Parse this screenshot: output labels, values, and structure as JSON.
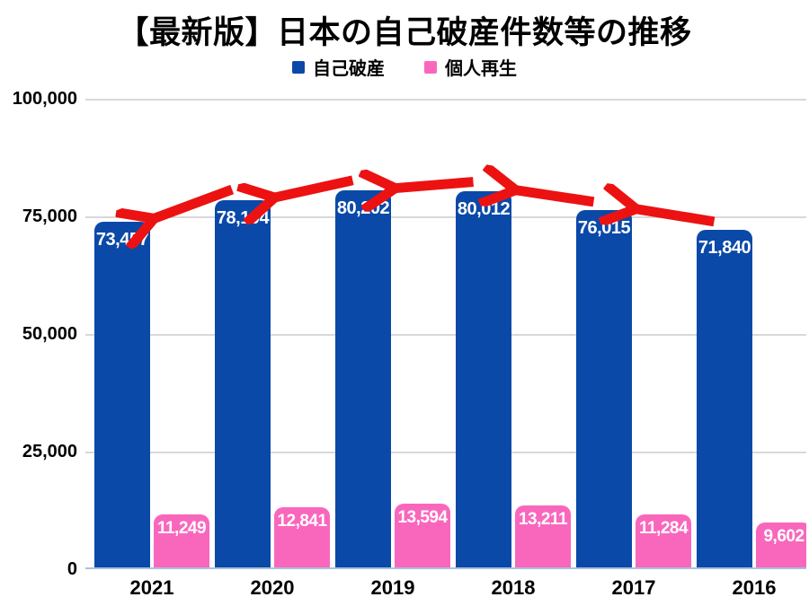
{
  "title": "【最新版】日本の自己破産件数等の推移",
  "legend": {
    "items": [
      {
        "label": "自己破産",
        "color": "#0a49a8"
      },
      {
        "label": "個人再生",
        "color": "#f967bd"
      }
    ]
  },
  "chart_data": {
    "type": "bar",
    "title": "【最新版】日本の自己破産件数等の推移",
    "categories": [
      "2021",
      "2020",
      "2019",
      "2018",
      "2017",
      "2016"
    ],
    "series": [
      {
        "name": "自己破産",
        "color": "#0a49a8",
        "values": [
          73457,
          78104,
          80202,
          80012,
          76015,
          71840
        ],
        "data_labels": [
          "73,457",
          "78,104",
          "80,202",
          "80,012",
          "76,015",
          "71,840"
        ]
      },
      {
        "name": "個人再生",
        "color": "#f967bd",
        "values": [
          11249,
          12841,
          13594,
          13211,
          11284,
          9602
        ],
        "data_labels": [
          "11,249",
          "12,841",
          "13,594",
          "13,211",
          "11,284",
          "9,602"
        ]
      }
    ],
    "xlabel": "",
    "ylabel": "",
    "ylim": [
      0,
      100000
    ],
    "ytick_values": [
      100000,
      75000,
      50000,
      25000,
      0
    ],
    "ytick_labels": [
      "100,000",
      "75,000",
      "50,000",
      "25,000",
      "0"
    ],
    "grid": true,
    "legend_position": "top-center",
    "annotations": {
      "arrows": {
        "count": 5,
        "color": "#ec1212",
        "meaning": "red arrows pointing right-to-left between the tops of consecutive 自己破産 bars"
      }
    }
  }
}
